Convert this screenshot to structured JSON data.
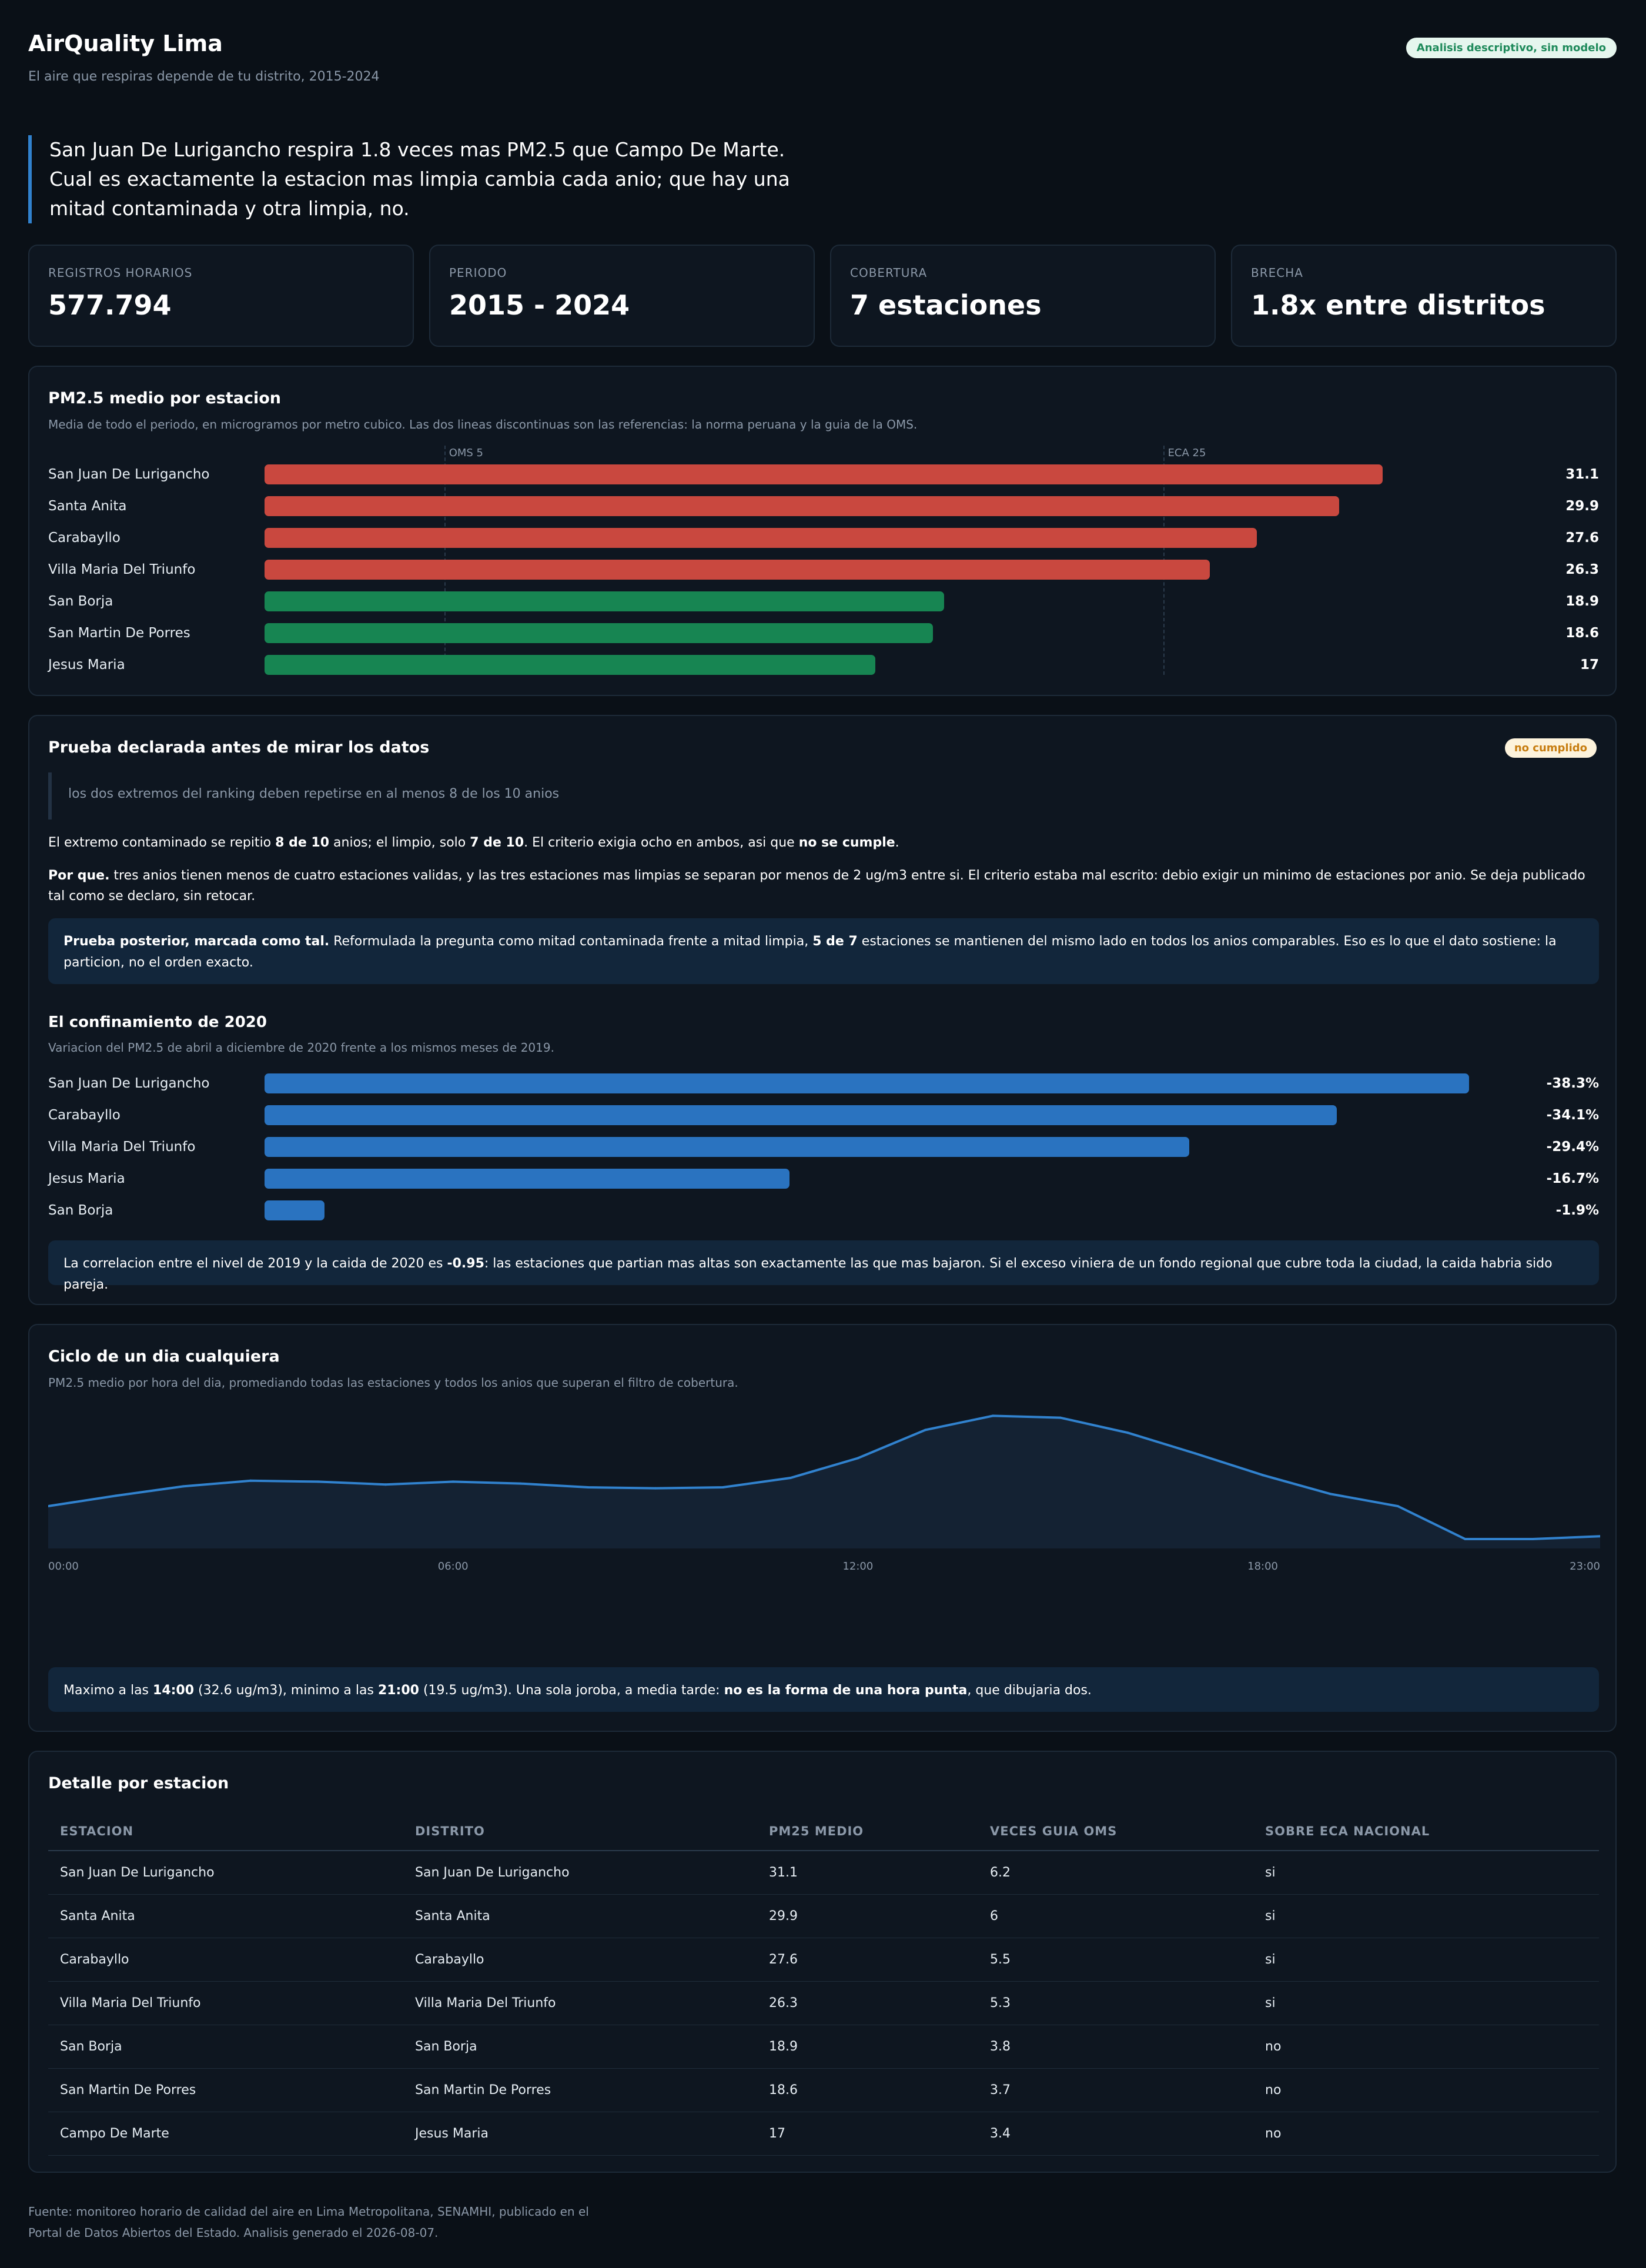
{
  "header": {
    "title": "AirQuality Lima",
    "subtitle": "El aire que respiras depende de tu distrito, 2015-2024",
    "badge": "Analisis descriptivo, sin modelo"
  },
  "lead": "San Juan De Lurigancho respira 1.8 veces mas PM2.5 que Campo De Marte. Cual es exactamente la estacion mas limpia cambia cada anio; que hay una mitad contaminada y otra limpia, no.",
  "stats": [
    {
      "label": "REGISTROS HORARIOS",
      "value": "577.794"
    },
    {
      "label": "PERIODO",
      "value": "2015 - 2024"
    },
    {
      "label": "COBERTURA",
      "value": "7 estaciones"
    },
    {
      "label": "BRECHA",
      "value": "1.8x entre distritos"
    }
  ],
  "pm25_section": {
    "title": "PM2.5 medio por estacion",
    "description": "Media de todo el periodo, en microgramos por metro cubico. Las dos lineas discontinuas son las referencias: la norma peruana y la guia de la OMS.",
    "ref_oms_label": "OMS 5",
    "ref_eca_label": "ECA 25"
  },
  "prueba": {
    "title": "Prueba declarada antes de mirar los datos",
    "badge": "no cumplido",
    "quote": "los dos extremos del ranking deben repetirse en al menos 8 de los 10 anios",
    "p1": {
      "a": "El extremo contaminado se repitio ",
      "b": "8 de 10",
      "c": " anios; el limpio, solo ",
      "d": "7 de 10",
      "e": ". El criterio exigia ocho en ambos, asi que ",
      "f": "no se cumple",
      "g": "."
    },
    "p2": {
      "a": "Por que.",
      "b": " tres anios tienen menos de cuatro estaciones validas, y las tres estaciones mas limpias se separan por menos de 2 ug/m3 entre si. El criterio estaba mal escrito: debio exigir un minimo de estaciones por anio. Se deja publicado tal como se declaro, sin retocar."
    },
    "callout": {
      "a": "Prueba posterior, marcada como tal.",
      "b": " Reformulada la pregunta como mitad contaminada frente a mitad limpia, ",
      "c": "5 de 7",
      "d": " estaciones se mantienen del mismo lado en todos los anios comparables. Eso es lo que el dato sostiene: la particion, no el orden exacto."
    }
  },
  "confinamiento": {
    "title": "El confinamiento de 2020",
    "description": "Variacion del PM2.5 de abril a diciembre de 2020 frente a los mismos meses de 2019.",
    "callout": {
      "a": "La correlacion entre el nivel de 2019 y la caida de 2020 es ",
      "b": "-0.95",
      "c": ": las estaciones que partian mas altas son exactamente las que mas bajaron. Si el exceso viniera de un fondo regional que cubre toda la ciudad, la caida habria sido pareja."
    }
  },
  "ciclo": {
    "title": "Ciclo de un dia cualquiera",
    "description": "PM2.5 medio por hora del dia, promediando todas las estaciones y todos los anios que superan el filtro de cobertura.",
    "callout": {
      "a": "Maximo a las ",
      "b": "14:00",
      "c": " (32.6 ug/m3), minimo a las ",
      "d": "21:00",
      "e": " (19.5 ug/m3). Una sola joroba, a media tarde: ",
      "f": "no es la forma de una hora punta",
      "g": ", que dibujaria dos."
    }
  },
  "detalle": {
    "title": "Detalle por estacion",
    "columns": [
      "ESTACION",
      "DISTRITO",
      "PM25 MEDIO",
      "VECES GUIA OMS",
      "SOBRE ECA NACIONAL"
    ],
    "rows": [
      [
        "San Juan De Lurigancho",
        "San Juan De Lurigancho",
        "31.1",
        "6.2",
        "si"
      ],
      [
        "Santa Anita",
        "Santa Anita",
        "29.9",
        "6",
        "si"
      ],
      [
        "Carabayllo",
        "Carabayllo",
        "27.6",
        "5.5",
        "si"
      ],
      [
        "Villa Maria Del Triunfo",
        "Villa Maria Del Triunfo",
        "26.3",
        "5.3",
        "si"
      ],
      [
        "San Borja",
        "San Borja",
        "18.9",
        "3.8",
        "no"
      ],
      [
        "San Martin De Porres",
        "San Martin De Porres",
        "18.6",
        "3.7",
        "no"
      ],
      [
        "Campo De Marte",
        "Jesus Maria",
        "17",
        "3.4",
        "no"
      ]
    ]
  },
  "footer": "Fuente: monitoreo horario de calidad del aire en Lima Metropolitana, SENAMHI, publicado en el Portal de Datos Abiertos del Estado. Analisis generado el 2026-08-07.",
  "colors": {
    "above_eca": "#c9483f",
    "below_eca": "#178552",
    "lockdown": "#2a73c0",
    "line": "#3182ce"
  },
  "chart_data": [
    {
      "type": "bar",
      "orientation": "horizontal",
      "title": "PM2.5 medio por estacion",
      "categories": [
        "San Juan De Lurigancho",
        "Santa Anita",
        "Carabayllo",
        "Villa Maria Del Triunfo",
        "San Borja",
        "San Martin De Porres",
        "Jesus Maria"
      ],
      "values": [
        31.1,
        29.9,
        27.6,
        26.3,
        18.9,
        18.6,
        17
      ],
      "xlim": [
        0,
        35
      ],
      "reference_lines": [
        {
          "label": "OMS 5",
          "value": 5
        },
        {
          "label": "ECA 25",
          "value": 25
        }
      ]
    },
    {
      "type": "bar",
      "orientation": "horizontal",
      "title": "El confinamiento de 2020",
      "categories": [
        "San Juan De Lurigancho",
        "Carabayllo",
        "Villa Maria Del Triunfo",
        "Jesus Maria",
        "San Borja"
      ],
      "values": [
        -38.3,
        -34.1,
        -29.4,
        -16.7,
        -1.9
      ],
      "value_labels": [
        "-38.3%",
        "-34.1%",
        "-29.4%",
        "-16.7%",
        "-1.9%"
      ],
      "xlim": [
        0,
        40
      ]
    },
    {
      "type": "area",
      "title": "Ciclo de un dia cualquiera",
      "x": [
        "00:00",
        "01:00",
        "02:00",
        "03:00",
        "04:00",
        "05:00",
        "06:00",
        "07:00",
        "08:00",
        "09:00",
        "10:00",
        "11:00",
        "12:00",
        "13:00",
        "14:00",
        "15:00",
        "16:00",
        "17:00",
        "18:00",
        "19:00",
        "20:00",
        "21:00",
        "22:00",
        "23:00"
      ],
      "x_tick_labels": [
        "00:00",
        "06:00",
        "12:00",
        "18:00",
        "23:00"
      ],
      "values": [
        23.0,
        24.1,
        25.1,
        25.7,
        25.6,
        25.3,
        25.6,
        25.4,
        25.0,
        24.9,
        25.0,
        26.0,
        28.1,
        31.1,
        32.6,
        32.4,
        30.8,
        28.6,
        26.3,
        24.3,
        23.0,
        19.5,
        19.5,
        19.8
      ],
      "ylim": [
        18.5,
        33.5
      ],
      "grid": false
    }
  ]
}
